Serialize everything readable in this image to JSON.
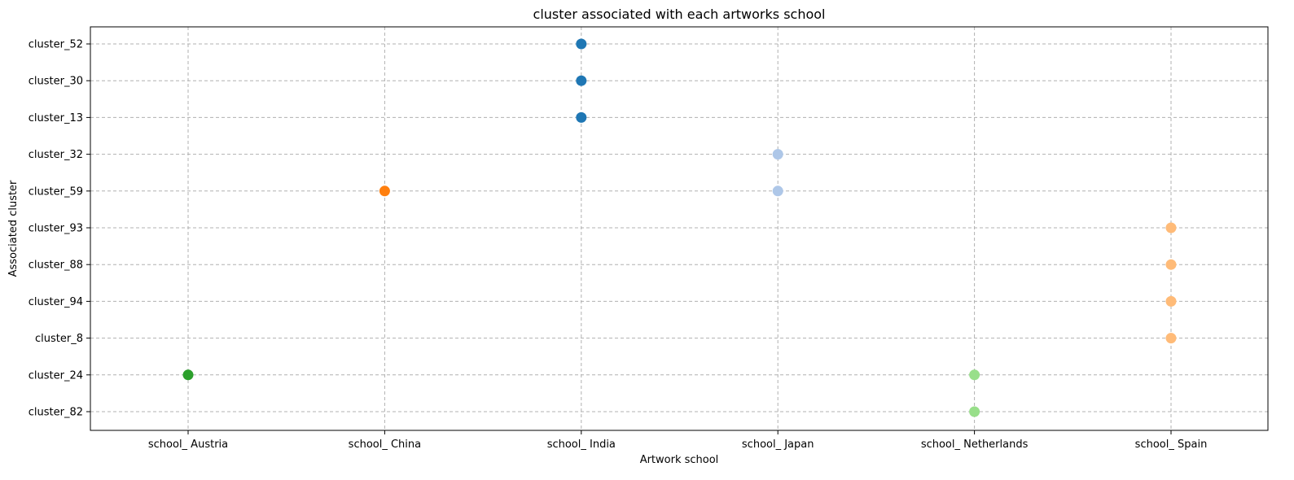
{
  "chart_data": {
    "type": "scatter",
    "title": "cluster associated with each artworks school",
    "xlabel": "Artwork school",
    "ylabel": "Associated cluster",
    "x_categories": [
      "school_ Austria",
      "school_ China",
      "school_ India",
      "school_ Japan",
      "school_ Netherlands",
      "school_ Spain"
    ],
    "y_categories": [
      "cluster_82",
      "cluster_24",
      "cluster_8",
      "cluster_94",
      "cluster_88",
      "cluster_93",
      "cluster_59",
      "cluster_32",
      "cluster_13",
      "cluster_30",
      "cluster_52"
    ],
    "grid": true,
    "points": [
      {
        "x": "school_ India",
        "y": "cluster_52",
        "color": "#1f77b4"
      },
      {
        "x": "school_ India",
        "y": "cluster_30",
        "color": "#1f77b4"
      },
      {
        "x": "school_ India",
        "y": "cluster_13",
        "color": "#1f77b4"
      },
      {
        "x": "school_ Japan",
        "y": "cluster_32",
        "color": "#aec7e8"
      },
      {
        "x": "school_ Japan",
        "y": "cluster_59",
        "color": "#aec7e8"
      },
      {
        "x": "school_ China",
        "y": "cluster_59",
        "color": "#ff7f0e"
      },
      {
        "x": "school_ Spain",
        "y": "cluster_93",
        "color": "#ffbb78"
      },
      {
        "x": "school_ Spain",
        "y": "cluster_88",
        "color": "#ffbb78"
      },
      {
        "x": "school_ Spain",
        "y": "cluster_94",
        "color": "#ffbb78"
      },
      {
        "x": "school_ Spain",
        "y": "cluster_8",
        "color": "#ffbb78"
      },
      {
        "x": "school_ Austria",
        "y": "cluster_24",
        "color": "#2ca02c"
      },
      {
        "x": "school_ Netherlands",
        "y": "cluster_24",
        "color": "#98df8a"
      },
      {
        "x": "school_ Netherlands",
        "y": "cluster_82",
        "color": "#98df8a"
      }
    ]
  }
}
